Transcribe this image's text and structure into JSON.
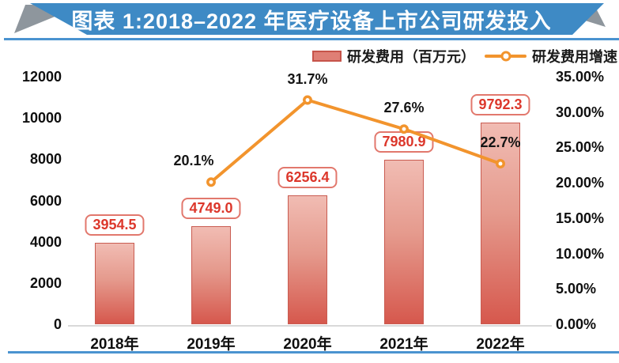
{
  "header": {
    "title": "图表 1:2018–2022 年医疗设备上市公司研发投入"
  },
  "legend": {
    "bar_label": "研发费用（百万元）",
    "line_label": "研发费用增速"
  },
  "colors": {
    "banner_blue": "#3e8ac5",
    "rule_blue": "#4a93d0",
    "fold_gray": "#8e969d",
    "bar_top": "#f1bcb3",
    "bar_bottom": "#d6584d",
    "bar_border": "#c95c51",
    "label_red": "#dc372b",
    "label_box_border": "#e2786d",
    "line_orange": "#f2942d",
    "axis_line_gray": "#d9d9d9"
  },
  "chart_data": {
    "type": "bar",
    "subtype": "combo-bar-line-dual-axis",
    "title": "图表 1:2018–2022 年医疗设备上市公司研发投入",
    "categories": [
      "2018年",
      "2019年",
      "2020年",
      "2021年",
      "2022年"
    ],
    "series": [
      {
        "name": "研发费用（百万元）",
        "type": "bar",
        "axis": "left",
        "values": [
          3954.5,
          4749.0,
          6256.4,
          7980.9,
          9792.3
        ],
        "labels": [
          "3954.5",
          "4749.0",
          "6256.4",
          "7980.9",
          "9792.3"
        ]
      },
      {
        "name": "研发费用增速",
        "type": "line",
        "axis": "right",
        "values": [
          null,
          20.1,
          31.7,
          27.6,
          22.7
        ],
        "labels": [
          null,
          "20.1%",
          "31.7%",
          "27.6%",
          "22.7%"
        ]
      }
    ],
    "left_axis": {
      "min": 0,
      "max": 12000,
      "ticks": [
        "12000",
        "10000",
        "8000",
        "6000",
        "4000",
        "2000",
        "0"
      ]
    },
    "right_axis": {
      "min": 0,
      "max": 35,
      "ticks": [
        "35.00%",
        "30.00%",
        "25.00%",
        "20.00%",
        "15.00%",
        "10.00%",
        "5.00%",
        "0.00%"
      ]
    },
    "grid": false,
    "legend_position": "top-right"
  }
}
